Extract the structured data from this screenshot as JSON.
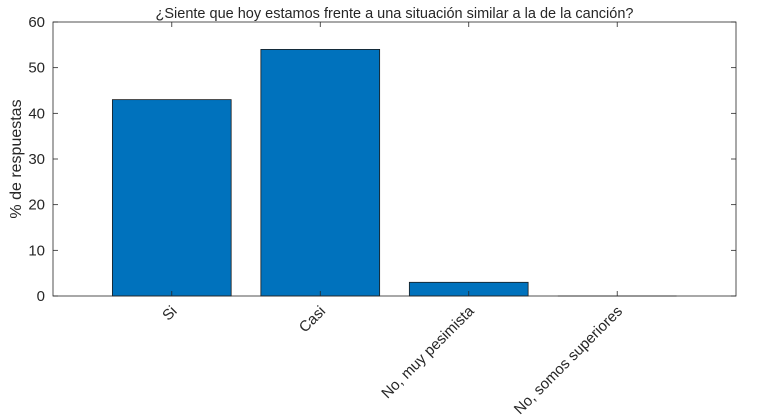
{
  "chart_data": {
    "type": "bar",
    "title": "¿Siente que hoy estamos frente a una situación similar a la de la canción?",
    "xlabel": "",
    "ylabel": "% de respuestas",
    "categories": [
      "Si",
      "Casi",
      "No, muy pesimista",
      "No, somos superiores"
    ],
    "values": [
      43,
      54,
      3,
      0
    ],
    "ylim": [
      0,
      60
    ],
    "yticks": [
      0,
      10,
      20,
      30,
      40,
      50,
      60
    ],
    "bar_color": "#0072BD",
    "grid": false,
    "legend": "none"
  }
}
